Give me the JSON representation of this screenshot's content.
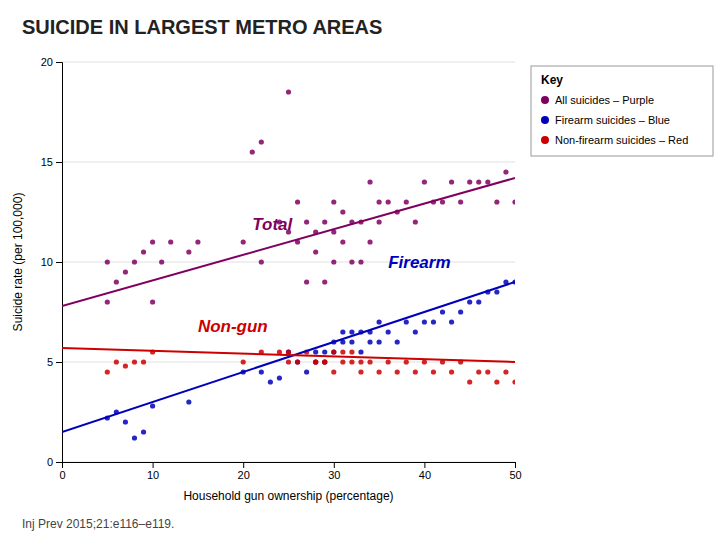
{
  "chart_data": {
    "type": "scatter",
    "title": "SUICIDE IN LARGEST METRO AREAS",
    "subtitle": "Inj Prev 2015;21:e116–e119.",
    "xlabel": "Household gun ownership (percentage)",
    "ylabel": "Suicide rate (per 100,000)",
    "xlim": [
      0,
      50
    ],
    "ylim": [
      0,
      20
    ],
    "xticks": [
      0,
      10,
      20,
      30,
      40,
      50
    ],
    "yticks": [
      0,
      5,
      10,
      15,
      20
    ],
    "grid": "y",
    "legend": "right",
    "legend_title": "Key",
    "series": [
      {
        "name": "All suicides – Purple",
        "type": "scatter",
        "color": "#800060",
        "x": [
          5,
          5,
          6,
          7,
          8,
          9,
          10,
          10,
          11,
          12,
          14,
          15,
          20,
          21,
          22,
          22,
          24,
          25,
          25,
          26,
          26,
          27,
          27,
          28,
          28,
          29,
          29,
          30,
          30,
          30,
          31,
          31,
          32,
          32,
          33,
          33,
          34,
          34,
          35,
          35,
          36,
          37,
          38,
          39,
          40,
          41,
          42,
          43,
          44,
          45,
          46,
          47,
          48,
          49,
          50
        ],
        "values": [
          8.0,
          10.0,
          9.0,
          9.5,
          10.0,
          10.5,
          8.0,
          11.0,
          10.0,
          11.0,
          10.5,
          11.0,
          11.0,
          15.5,
          16.0,
          10.0,
          12.0,
          11.5,
          18.5,
          13.0,
          11.0,
          9.0,
          12.0,
          11.5,
          10.5,
          12.0,
          9.0,
          11.5,
          13.0,
          10.0,
          11.0,
          12.5,
          12.0,
          10.0,
          12.0,
          10.0,
          11.0,
          14.0,
          12.0,
          13.0,
          13.0,
          12.5,
          13.0,
          12.0,
          14.0,
          13.0,
          13.0,
          14.0,
          13.0,
          14.0,
          14.0,
          14.0,
          13.0,
          14.5,
          13.0
        ]
      },
      {
        "name": "Firearm suicides – Blue",
        "type": "scatter",
        "color": "#0000bb",
        "x": [
          5,
          6,
          7,
          8,
          9,
          10,
          14,
          20,
          22,
          23,
          24,
          25,
          26,
          27,
          28,
          28,
          29,
          29,
          30,
          30,
          31,
          31,
          32,
          32,
          33,
          33,
          34,
          34,
          35,
          35,
          36,
          37,
          38,
          39,
          40,
          41,
          42,
          43,
          44,
          45,
          46,
          47,
          48,
          49,
          50
        ],
        "values": [
          2.2,
          2.5,
          2.0,
          1.2,
          1.5,
          2.8,
          3.0,
          4.5,
          4.5,
          4.0,
          4.2,
          5.5,
          5.0,
          4.5,
          5.0,
          5.5,
          5.5,
          5.0,
          5.5,
          6.0,
          6.0,
          6.5,
          6.5,
          6.0,
          6.5,
          5.5,
          6.5,
          6.0,
          6.0,
          7.0,
          6.5,
          6.0,
          7.0,
          6.5,
          7.0,
          7.0,
          7.5,
          7.0,
          7.5,
          8.0,
          8.0,
          8.5,
          8.5,
          9.0,
          9.0
        ]
      },
      {
        "name": "Non-firearm suicides – Red",
        "type": "scatter",
        "color": "#cc0000",
        "x": [
          5,
          6,
          7,
          8,
          9,
          10,
          20,
          22,
          24,
          25,
          25,
          26,
          27,
          28,
          28,
          29,
          29,
          30,
          30,
          31,
          31,
          32,
          32,
          33,
          33,
          34,
          35,
          36,
          37,
          38,
          39,
          40,
          41,
          42,
          43,
          44,
          45,
          46,
          47,
          48,
          49,
          50
        ],
        "values": [
          4.5,
          5.0,
          4.8,
          5.0,
          5.0,
          5.5,
          5.0,
          5.5,
          5.5,
          5.0,
          5.5,
          5.0,
          5.5,
          5.0,
          5.0,
          5.0,
          5.0,
          5.5,
          4.5,
          5.5,
          5.0,
          5.5,
          5.0,
          5.0,
          4.5,
          5.0,
          4.5,
          5.0,
          4.5,
          5.0,
          4.5,
          5.0,
          4.5,
          5.0,
          4.5,
          5.0,
          4.0,
          4.5,
          4.5,
          4.0,
          4.5,
          4.0
        ]
      },
      {
        "type": "line",
        "color": "#800060",
        "x": [
          0,
          50
        ],
        "values": [
          7.8,
          14.2
        ]
      },
      {
        "type": "line",
        "color": "#0000bb",
        "x": [
          0,
          50
        ],
        "values": [
          1.5,
          9.0
        ]
      },
      {
        "type": "line",
        "color": "#cc0000",
        "x": [
          0,
          50
        ],
        "values": [
          5.7,
          5.0
        ]
      }
    ],
    "annotations": [
      {
        "text": "Total",
        "x": 21,
        "y": 11.6,
        "color": "#800060"
      },
      {
        "text": "Firearm",
        "x": 36,
        "y": 9.7,
        "color": "#0000bb"
      },
      {
        "text": "Non-gun",
        "x": 15,
        "y": 6.5,
        "color": "#cc0000"
      }
    ]
  }
}
